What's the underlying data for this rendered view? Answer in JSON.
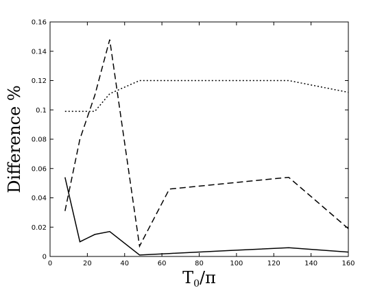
{
  "chart_data": {
    "type": "line",
    "title": "",
    "xlabel": "T",
    "xlabel_sub": "0",
    "xlabel_suffix": "/π",
    "ylabel": "Difference %",
    "xlim": [
      0,
      160
    ],
    "ylim": [
      0,
      0.16
    ],
    "x_ticks": [
      0,
      20,
      40,
      60,
      80,
      100,
      120,
      140,
      160
    ],
    "y_ticks": [
      0,
      0.02,
      0.04,
      0.06,
      0.08,
      0.1,
      0.12,
      0.14,
      0.16
    ],
    "x_tick_labels": [
      "0",
      "20",
      "40",
      "60",
      "80",
      "100",
      "120",
      "140",
      "160"
    ],
    "y_tick_labels": [
      "0",
      "0.02",
      "0.04",
      "0.06",
      "0.08",
      "0.1",
      "0.12",
      "0.14",
      "0.16"
    ],
    "grid": false,
    "legend": "none",
    "series": [
      {
        "style": "solid",
        "color": "#000000",
        "x": [
          8,
          16,
          24,
          32,
          48,
          64,
          96,
          128,
          160
        ],
        "y": [
          0.054,
          0.01,
          0.015,
          0.017,
          0.001,
          0.002,
          0.004,
          0.006,
          0.003
        ]
      },
      {
        "style": "dashed",
        "color": "#000000",
        "x": [
          8,
          16,
          24,
          32,
          48,
          64,
          96,
          128,
          160
        ],
        "y": [
          0.031,
          0.08,
          0.11,
          0.148,
          0.007,
          0.046,
          0.05,
          0.054,
          0.019
        ]
      },
      {
        "style": "dotted",
        "color": "#000000",
        "x": [
          8,
          16,
          24,
          32,
          48,
          64,
          96,
          128,
          160
        ],
        "y": [
          0.099,
          0.099,
          0.099,
          0.111,
          0.12,
          0.12,
          0.12,
          0.12,
          0.112
        ]
      }
    ]
  }
}
